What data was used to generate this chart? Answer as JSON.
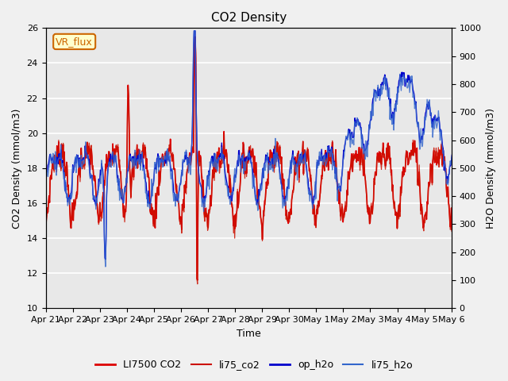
{
  "title": "CO2 Density",
  "xlabel": "Time",
  "ylabel_left": "CO2 Density (mmol/m3)",
  "ylabel_right": "H2O Density (mmol/m3)",
  "ylim_left": [
    10,
    26
  ],
  "ylim_right": [
    0,
    1000
  ],
  "yticks_left": [
    10,
    12,
    14,
    16,
    18,
    20,
    22,
    24,
    26
  ],
  "yticks_right": [
    0,
    100,
    200,
    300,
    400,
    500,
    600,
    700,
    800,
    900,
    1000
  ],
  "xtick_labels": [
    "Apr 21",
    "Apr 22",
    "Apr 23",
    "Apr 24",
    "Apr 25",
    "Apr 26",
    "Apr 27",
    "Apr 28",
    "Apr 29",
    "Apr 30",
    "May 1",
    "May 2",
    "May 3",
    "May 4",
    "May 5",
    "May 6"
  ],
  "fig_bg_color": "#f0f0f0",
  "plot_bg_color": "#e8e8e8",
  "grid_color": "#ffffff",
  "li7500_co2_color": "#dd0000",
  "li75_co2_color": "#cc1100",
  "op_h2o_color": "#0000cc",
  "li75_h2o_color": "#3366cc",
  "legend_labels": [
    "LI7500 CO2",
    "li75_co2",
    "op_h2o",
    "li75_h2o"
  ],
  "annotation_text": "VR_flux",
  "annotation_color": "#cc6600",
  "annotation_bg": "#ffffcc",
  "annotation_edge": "#cc6600"
}
